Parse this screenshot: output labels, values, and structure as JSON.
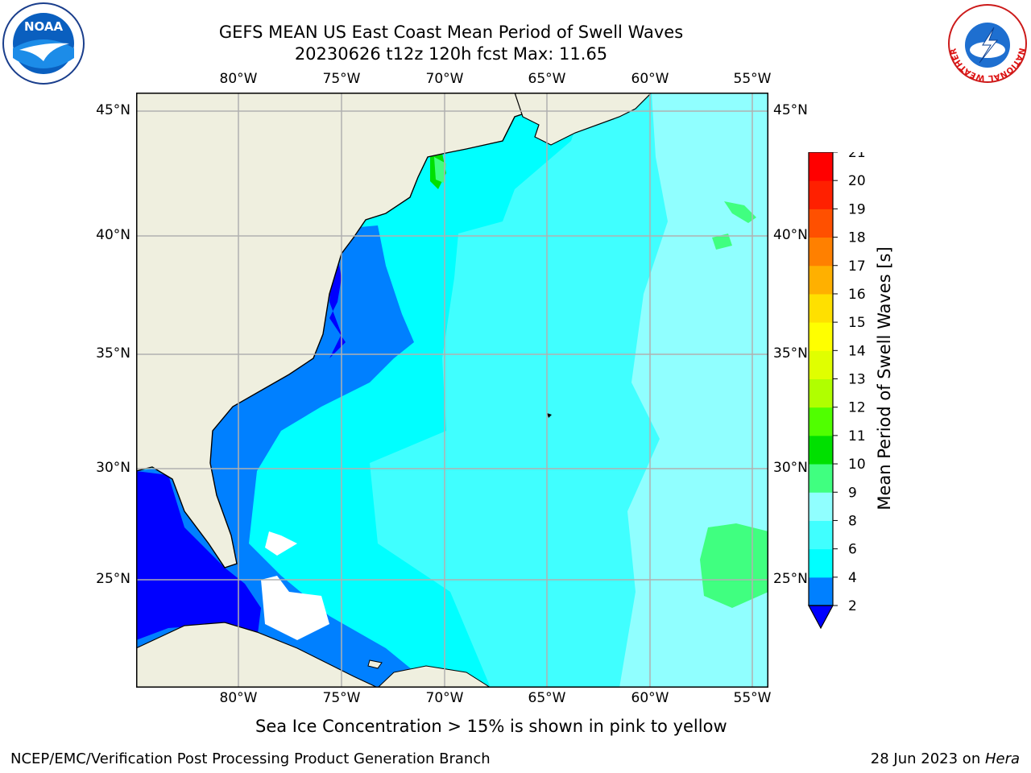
{
  "title": {
    "line1": "GEFS MEAN US East Coast Mean Period of Swell Waves",
    "line2": "20230626 t12z 120h fcst   Max: 11.65"
  },
  "logos": {
    "left": {
      "icon": "noaa-logo",
      "text": "NOAA"
    },
    "right": {
      "icon": "nws-logo",
      "ring_text": "NATIONAL WEATHER SERVICE"
    }
  },
  "map": {
    "lon_labels": [
      "80°W",
      "75°W",
      "70°W",
      "65°W",
      "60°W",
      "55°W"
    ],
    "lat_labels": [
      "45°N",
      "40°N",
      "35°N",
      "30°N",
      "25°N"
    ],
    "lon_range": [
      -85,
      -54.2
    ],
    "lat_range": [
      20.5,
      46.2
    ],
    "land_color": "#efefdf",
    "grid_color": "#b0b0b0"
  },
  "colorbar": {
    "label": "Mean Period of Swell Waves [s]",
    "ticks": [
      "2",
      "4",
      "6",
      "8",
      "9",
      "10",
      "11",
      "12",
      "13",
      "14",
      "15",
      "16",
      "17",
      "18",
      "19",
      "20",
      "21"
    ],
    "colors": [
      "#0000ff",
      "#0080ff",
      "#00ffff",
      "#40ffff",
      "#90ffff",
      "#40ff80",
      "#00e000",
      "#50ff00",
      "#b0ff00",
      "#e0ff00",
      "#ffff00",
      "#ffe000",
      "#ffb000",
      "#ff8000",
      "#ff5000",
      "#ff2000",
      "#ff0000"
    ]
  },
  "note": "Sea Ice Concentration > 15% is shown in pink to yellow",
  "footer": {
    "left": "NCEP/EMC/Verification Post Processing Product Generation Branch",
    "right_date": "28 Jun 2023 on ",
    "right_host": "Hera"
  }
}
